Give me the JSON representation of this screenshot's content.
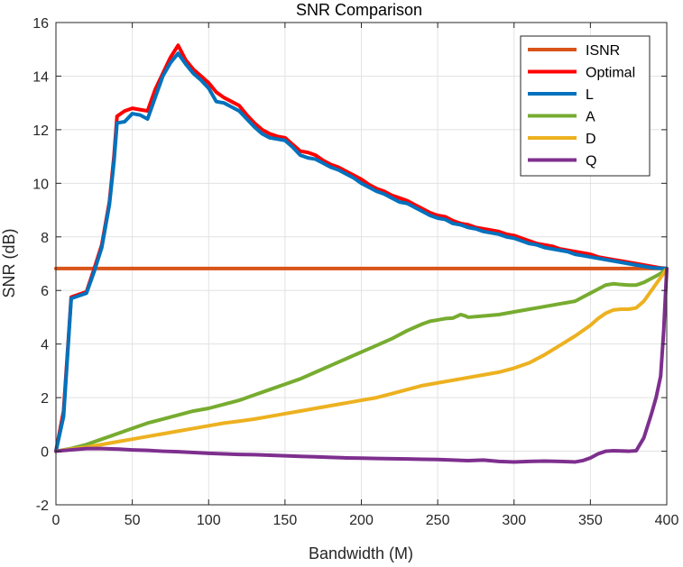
{
  "chart_data": {
    "type": "line",
    "title": "SNR Comparison",
    "xlabel": "Bandwidth (M)",
    "ylabel": "SNR (dB)",
    "xlim": [
      0,
      400
    ],
    "ylim": [
      -2,
      16
    ],
    "xticks": [
      0,
      50,
      100,
      150,
      200,
      250,
      300,
      350,
      400
    ],
    "yticks": [
      -2,
      0,
      2,
      4,
      6,
      8,
      10,
      12,
      14,
      16
    ],
    "grid": true,
    "legend_position": "top-right",
    "series": [
      {
        "name": "ISNR",
        "color": "#D95319",
        "x": [
          0,
          400
        ],
        "y": [
          6.82,
          6.82
        ]
      },
      {
        "name": "Optimal",
        "color": "#FF0000",
        "x": [
          0,
          5,
          10,
          15,
          20,
          25,
          30,
          35,
          38,
          40,
          45,
          50,
          55,
          60,
          65,
          70,
          75,
          80,
          85,
          90,
          95,
          100,
          105,
          110,
          115,
          120,
          125,
          130,
          135,
          140,
          145,
          150,
          155,
          160,
          165,
          170,
          175,
          180,
          185,
          190,
          195,
          200,
          205,
          210,
          215,
          220,
          225,
          230,
          235,
          240,
          245,
          250,
          255,
          260,
          265,
          270,
          275,
          280,
          285,
          290,
          295,
          300,
          305,
          310,
          315,
          320,
          325,
          330,
          335,
          340,
          345,
          350,
          355,
          360,
          365,
          370,
          375,
          380,
          385,
          390,
          395,
          400
        ],
        "y": [
          0.0,
          1.5,
          5.75,
          5.85,
          5.95,
          6.8,
          7.7,
          9.3,
          11.0,
          12.5,
          12.7,
          12.8,
          12.75,
          12.7,
          13.5,
          14.1,
          14.7,
          15.15,
          14.6,
          14.25,
          14.0,
          13.75,
          13.4,
          13.2,
          13.05,
          12.9,
          12.55,
          12.25,
          12.0,
          11.85,
          11.75,
          11.7,
          11.45,
          11.2,
          11.15,
          11.05,
          10.85,
          10.7,
          10.6,
          10.45,
          10.3,
          10.15,
          9.95,
          9.8,
          9.7,
          9.55,
          9.45,
          9.35,
          9.2,
          9.05,
          8.9,
          8.8,
          8.75,
          8.6,
          8.5,
          8.45,
          8.35,
          8.3,
          8.25,
          8.2,
          8.1,
          8.05,
          7.95,
          7.85,
          7.75,
          7.7,
          7.65,
          7.55,
          7.5,
          7.45,
          7.4,
          7.35,
          7.25,
          7.2,
          7.15,
          7.1,
          7.05,
          7.0,
          6.95,
          6.9,
          6.85,
          6.82
        ]
      },
      {
        "name": "L",
        "color": "#0072BD",
        "x": [
          0,
          5,
          10,
          15,
          20,
          25,
          30,
          35,
          38,
          40,
          45,
          50,
          55,
          60,
          65,
          70,
          75,
          80,
          85,
          90,
          95,
          100,
          105,
          110,
          115,
          120,
          125,
          130,
          135,
          140,
          145,
          150,
          155,
          160,
          165,
          170,
          175,
          180,
          185,
          190,
          195,
          200,
          205,
          210,
          215,
          220,
          225,
          230,
          235,
          240,
          245,
          250,
          255,
          260,
          265,
          270,
          275,
          280,
          285,
          290,
          295,
          300,
          305,
          310,
          315,
          320,
          325,
          330,
          335,
          340,
          345,
          350,
          355,
          360,
          365,
          370,
          375,
          380,
          385,
          390,
          395,
          400
        ],
        "y": [
          0.0,
          1.3,
          5.7,
          5.8,
          5.9,
          6.7,
          7.6,
          9.2,
          10.8,
          12.25,
          12.3,
          12.6,
          12.55,
          12.4,
          13.2,
          14.0,
          14.5,
          14.85,
          14.45,
          14.1,
          13.85,
          13.55,
          13.05,
          13.0,
          12.85,
          12.7,
          12.4,
          12.1,
          11.85,
          11.7,
          11.65,
          11.6,
          11.35,
          11.05,
          10.95,
          10.9,
          10.75,
          10.6,
          10.5,
          10.35,
          10.2,
          10.0,
          9.85,
          9.7,
          9.6,
          9.45,
          9.3,
          9.25,
          9.1,
          8.95,
          8.8,
          8.7,
          8.65,
          8.5,
          8.45,
          8.35,
          8.3,
          8.2,
          8.15,
          8.1,
          8.0,
          7.95,
          7.85,
          7.75,
          7.7,
          7.6,
          7.55,
          7.5,
          7.45,
          7.35,
          7.3,
          7.25,
          7.2,
          7.15,
          7.1,
          7.05,
          7.0,
          6.95,
          6.9,
          6.85,
          6.83,
          6.82
        ]
      },
      {
        "name": "A",
        "color": "#77AC30",
        "x": [
          0,
          10,
          20,
          30,
          40,
          50,
          60,
          70,
          80,
          90,
          100,
          110,
          120,
          130,
          140,
          150,
          160,
          170,
          180,
          190,
          200,
          210,
          220,
          230,
          240,
          245,
          250,
          255,
          260,
          265,
          268,
          270,
          280,
          290,
          300,
          310,
          315,
          320,
          325,
          330,
          335,
          340,
          345,
          350,
          355,
          360,
          365,
          370,
          375,
          380,
          385,
          390,
          395,
          400
        ],
        "y": [
          0.0,
          0.1,
          0.25,
          0.45,
          0.65,
          0.85,
          1.05,
          1.2,
          1.35,
          1.5,
          1.6,
          1.75,
          1.9,
          2.1,
          2.3,
          2.5,
          2.7,
          2.95,
          3.2,
          3.45,
          3.7,
          3.95,
          4.2,
          4.5,
          4.75,
          4.85,
          4.9,
          4.95,
          4.97,
          5.1,
          5.05,
          5.0,
          5.05,
          5.1,
          5.2,
          5.3,
          5.35,
          5.4,
          5.45,
          5.5,
          5.55,
          5.6,
          5.75,
          5.9,
          6.05,
          6.2,
          6.25,
          6.22,
          6.2,
          6.2,
          6.3,
          6.45,
          6.6,
          6.8
        ]
      },
      {
        "name": "D",
        "color": "#EDB120",
        "x": [
          0,
          10,
          20,
          30,
          40,
          50,
          60,
          70,
          80,
          90,
          100,
          110,
          120,
          130,
          140,
          150,
          160,
          170,
          180,
          190,
          200,
          210,
          220,
          230,
          240,
          250,
          260,
          270,
          280,
          290,
          300,
          310,
          320,
          330,
          340,
          350,
          355,
          360,
          365,
          370,
          375,
          380,
          385,
          390,
          395,
          400
        ],
        "y": [
          0.0,
          0.08,
          0.15,
          0.25,
          0.35,
          0.45,
          0.55,
          0.65,
          0.75,
          0.85,
          0.95,
          1.05,
          1.12,
          1.2,
          1.3,
          1.4,
          1.5,
          1.6,
          1.7,
          1.8,
          1.9,
          2.0,
          2.15,
          2.3,
          2.45,
          2.55,
          2.65,
          2.75,
          2.85,
          2.95,
          3.1,
          3.3,
          3.6,
          3.95,
          4.3,
          4.7,
          4.95,
          5.15,
          5.27,
          5.3,
          5.3,
          5.35,
          5.6,
          6.0,
          6.4,
          6.8
        ]
      },
      {
        "name": "Q",
        "color": "#7E2F8E",
        "x": [
          0,
          10,
          20,
          30,
          40,
          50,
          60,
          70,
          80,
          90,
          100,
          110,
          120,
          130,
          140,
          150,
          160,
          170,
          180,
          190,
          200,
          210,
          220,
          230,
          240,
          250,
          260,
          270,
          280,
          290,
          300,
          310,
          320,
          330,
          340,
          345,
          350,
          355,
          360,
          365,
          370,
          375,
          380,
          385,
          390,
          393,
          396,
          398,
          400
        ],
        "y": [
          0.0,
          0.05,
          0.1,
          0.1,
          0.08,
          0.05,
          0.03,
          0.0,
          -0.02,
          -0.05,
          -0.08,
          -0.1,
          -0.12,
          -0.13,
          -0.15,
          -0.17,
          -0.19,
          -0.21,
          -0.23,
          -0.25,
          -0.26,
          -0.27,
          -0.28,
          -0.29,
          -0.3,
          -0.31,
          -0.33,
          -0.35,
          -0.33,
          -0.38,
          -0.4,
          -0.38,
          -0.37,
          -0.38,
          -0.4,
          -0.35,
          -0.25,
          -0.1,
          0.0,
          0.02,
          0.01,
          0.0,
          0.02,
          0.5,
          1.4,
          2.0,
          2.8,
          4.5,
          6.8
        ]
      }
    ]
  }
}
